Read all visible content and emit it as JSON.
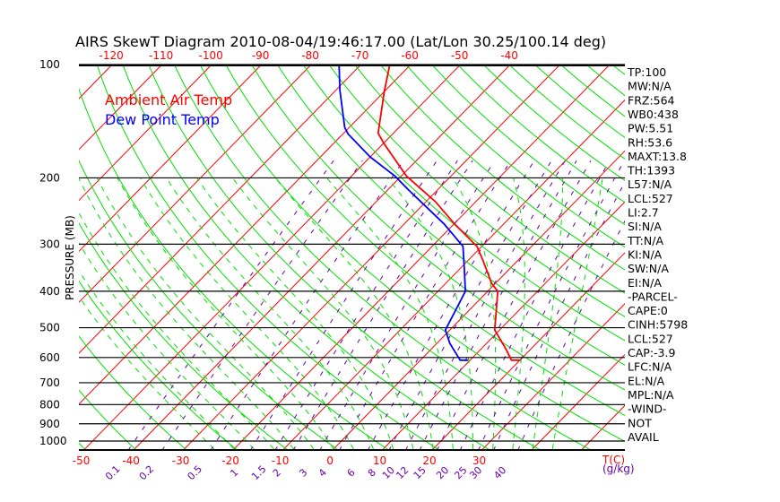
{
  "chart_data": {
    "type": "line",
    "subtype": "skew-t log-p",
    "title": "AIRS SkewT Diagram 2010-08-04/19:46:17.00 (Lat/Lon 30.25/100.14 deg)",
    "ylabel": "PRESSURE (MB)",
    "xlabel": "T(C)",
    "mixing_ratio_unit": "(g/kg)",
    "yticks": [
      100,
      200,
      300,
      400,
      500,
      600,
      700,
      800,
      900,
      1000
    ],
    "ylim": [
      1050,
      100
    ],
    "xticks_bottom": [
      -50,
      -40,
      -30,
      -20,
      -10,
      0,
      10,
      20,
      30
    ],
    "xticks_top": [
      -120,
      -110,
      -100,
      -90,
      -80,
      -70,
      -60,
      -50,
      -40
    ],
    "mixing_ratio_ticks": [
      "0.1",
      "0.2",
      "0.5",
      "1",
      "1.5",
      "2",
      "3",
      "4",
      "6",
      "8",
      "10",
      "12",
      "15",
      "20",
      "25",
      "30",
      "40"
    ],
    "legend": [
      {
        "label": "Ambient Air Temp",
        "color": "#ff0000"
      },
      {
        "label": "Dew Point Temp",
        "color": "#0000ff"
      }
    ],
    "legend_position": "top-left",
    "series": [
      {
        "name": "Ambient Air Temp",
        "color": "#ff0000",
        "points": [
          {
            "p": 100,
            "T": -64.2
          },
          {
            "p": 118,
            "T": -60.0
          },
          {
            "p": 152,
            "T": -53.1
          },
          {
            "p": 162,
            "T": -49.9
          },
          {
            "p": 198,
            "T": -38.9
          },
          {
            "p": 231,
            "T": -28.2
          },
          {
            "p": 265,
            "T": -19.9
          },
          {
            "p": 304,
            "T": -11.0
          },
          {
            "p": 330,
            "T": -7.2
          },
          {
            "p": 381,
            "T": -0.8
          },
          {
            "p": 400,
            "T": 2.0
          },
          {
            "p": 507,
            "T": 9.0
          },
          {
            "p": 572,
            "T": 15.2
          },
          {
            "p": 610,
            "T": 18.3
          },
          {
            "p": 610,
            "T": 20.1
          }
        ]
      },
      {
        "name": "Dew Point Temp",
        "color": "#0000ff",
        "points": [
          {
            "p": 100,
            "T": -74.4
          },
          {
            "p": 117,
            "T": -69.2
          },
          {
            "p": 147,
            "T": -60.9
          },
          {
            "p": 153,
            "T": -58.9
          },
          {
            "p": 176,
            "T": -50.0
          },
          {
            "p": 198,
            "T": -41.2
          },
          {
            "p": 215,
            "T": -35.9
          },
          {
            "p": 240,
            "T": -28.6
          },
          {
            "p": 265,
            "T": -22.0
          },
          {
            "p": 304,
            "T": -13.8
          },
          {
            "p": 349,
            "T": -9.1
          },
          {
            "p": 400,
            "T": -4.5
          },
          {
            "p": 507,
            "T": -0.9
          },
          {
            "p": 550,
            "T": 2.6
          },
          {
            "p": 610,
            "T": 8.0
          },
          {
            "p": 610,
            "T": 9.6
          }
        ]
      }
    ]
  },
  "indices": [
    "TP:100",
    "MW:N/A",
    "FRZ:564",
    "WB0:438",
    "PW:5.51",
    "RH:53.6",
    "MAXT:13.8",
    "TH:1393",
    "L57:N/A",
    "LCL:527",
    "LI:2.7",
    "SI:N/A",
    "TT:N/A",
    "KI:N/A",
    "SW:N/A",
    "EI:N/A",
    "-PARCEL-",
    "CAPE:0",
    "CINH:5798",
    "LCL:527",
    "CAP:-3.9",
    "LFC:N/A",
    "EL:N/A",
    "MPL:N/A",
    "-WIND-",
    "NOT",
    "AVAIL"
  ],
  "colors": {
    "isotherm": "#ff0000",
    "dry_adiabat": "#00e000",
    "moist_adiabat": "#00e000",
    "mixing_ratio": "#6600aa",
    "temp_tick": "#ff0000"
  }
}
